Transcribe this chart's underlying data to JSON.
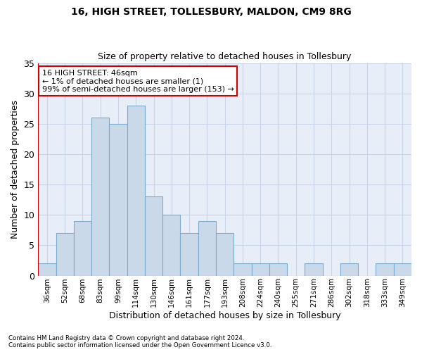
{
  "title1": "16, HIGH STREET, TOLLESBURY, MALDON, CM9 8RG",
  "title2": "Size of property relative to detached houses in Tollesbury",
  "xlabel": "Distribution of detached houses by size in Tollesbury",
  "ylabel": "Number of detached properties",
  "categories": [
    "36sqm",
    "52sqm",
    "68sqm",
    "83sqm",
    "99sqm",
    "114sqm",
    "130sqm",
    "146sqm",
    "161sqm",
    "177sqm",
    "193sqm",
    "208sqm",
    "224sqm",
    "240sqm",
    "255sqm",
    "271sqm",
    "286sqm",
    "302sqm",
    "318sqm",
    "333sqm",
    "349sqm"
  ],
  "values": [
    2,
    7,
    9,
    26,
    25,
    28,
    13,
    10,
    7,
    9,
    7,
    2,
    2,
    2,
    0,
    2,
    0,
    2,
    0,
    2,
    2
  ],
  "bar_color": "#c9d9ea",
  "bar_edge_color": "#7aabce",
  "highlight_color": "#cc0000",
  "annotation_text": "16 HIGH STREET: 46sqm\n← 1% of detached houses are smaller (1)\n99% of semi-detached houses are larger (153) →",
  "annotation_box_color": "#ffffff",
  "annotation_box_edge": "#cc0000",
  "footer1": "Contains HM Land Registry data © Crown copyright and database right 2024.",
  "footer2": "Contains public sector information licensed under the Open Government Licence v3.0.",
  "ylim": [
    0,
    35
  ],
  "yticks": [
    0,
    5,
    10,
    15,
    20,
    25,
    30,
    35
  ],
  "grid_color": "#c8d4e8",
  "background_color": "#e8eef8",
  "fig_background": "#ffffff"
}
